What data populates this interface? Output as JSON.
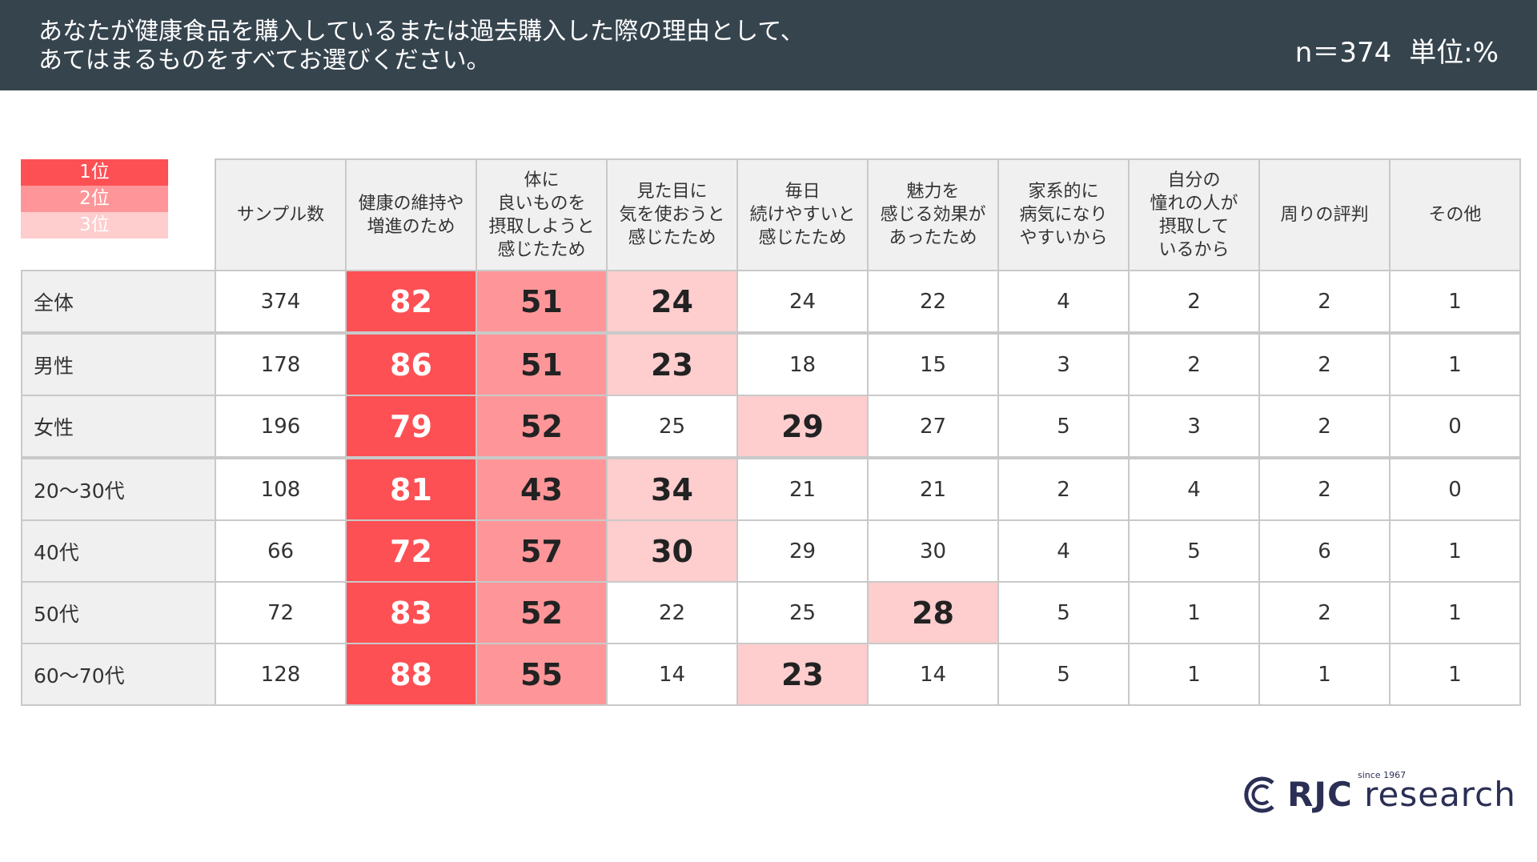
{
  "header": {
    "question_line1": "あなたが健康食品を購入しているまたは過去購入した際の理由として、",
    "question_line2": "あてはまるものをすべてお選びください。",
    "sample": "n＝374",
    "unit": "単位:%"
  },
  "legend": [
    "1位",
    "2位",
    "3位"
  ],
  "colors": {
    "rank1": "#fd5054",
    "rank2": "#fe9699",
    "rank3": "#fecdce",
    "header_bg": "#36444e"
  },
  "chart_data": {
    "type": "table",
    "columns": [
      "サンプル数",
      "健康の維持や\n増進のため",
      "体に\n良いものを\n摂取しようと\n感じたため",
      "見た目に\n気を使おうと\n感じたため",
      "毎日\n続けやすいと\n感じたため",
      "魅力を\n感じる効果が\nあったため",
      "家系的に\n病気になり\nやすいから",
      "自分の\n憧れの人が\n摂取して\nいるから",
      "周りの評判",
      "その他"
    ],
    "rows": [
      {
        "label": "全体",
        "values": [
          "374",
          "82",
          "51",
          "24",
          "24",
          "22",
          "4",
          "2",
          "2",
          "1"
        ],
        "ranks": [
          0,
          1,
          2,
          3,
          0,
          0,
          0,
          0,
          0,
          0
        ]
      },
      {
        "label": "男性",
        "values": [
          "178",
          "86",
          "51",
          "23",
          "18",
          "15",
          "3",
          "2",
          "2",
          "1"
        ],
        "ranks": [
          0,
          1,
          2,
          3,
          0,
          0,
          0,
          0,
          0,
          0
        ]
      },
      {
        "label": "女性",
        "values": [
          "196",
          "79",
          "52",
          "25",
          "29",
          "27",
          "5",
          "3",
          "2",
          "0"
        ],
        "ranks": [
          0,
          1,
          2,
          0,
          3,
          0,
          0,
          0,
          0,
          0
        ]
      },
      {
        "label": "20～30代",
        "values": [
          "108",
          "81",
          "43",
          "34",
          "21",
          "21",
          "2",
          "4",
          "2",
          "0"
        ],
        "ranks": [
          0,
          1,
          2,
          3,
          0,
          0,
          0,
          0,
          0,
          0
        ]
      },
      {
        "label": "40代",
        "values": [
          "66",
          "72",
          "57",
          "30",
          "29",
          "30",
          "4",
          "5",
          "6",
          "1"
        ],
        "ranks": [
          0,
          1,
          2,
          3,
          0,
          0,
          0,
          0,
          0,
          0
        ]
      },
      {
        "label": "50代",
        "values": [
          "72",
          "83",
          "52",
          "22",
          "25",
          "28",
          "5",
          "1",
          "2",
          "1"
        ],
        "ranks": [
          0,
          1,
          2,
          0,
          0,
          3,
          0,
          0,
          0,
          0
        ]
      },
      {
        "label": "60～70代",
        "values": [
          "128",
          "88",
          "55",
          "14",
          "23",
          "14",
          "5",
          "1",
          "1",
          "1"
        ],
        "ranks": [
          0,
          1,
          2,
          0,
          3,
          0,
          0,
          0,
          0,
          0
        ]
      }
    ],
    "group_separators_before": [
      1,
      3
    ]
  },
  "logo": {
    "brand": "RJC",
    "word": "research",
    "since": "since 1967"
  }
}
